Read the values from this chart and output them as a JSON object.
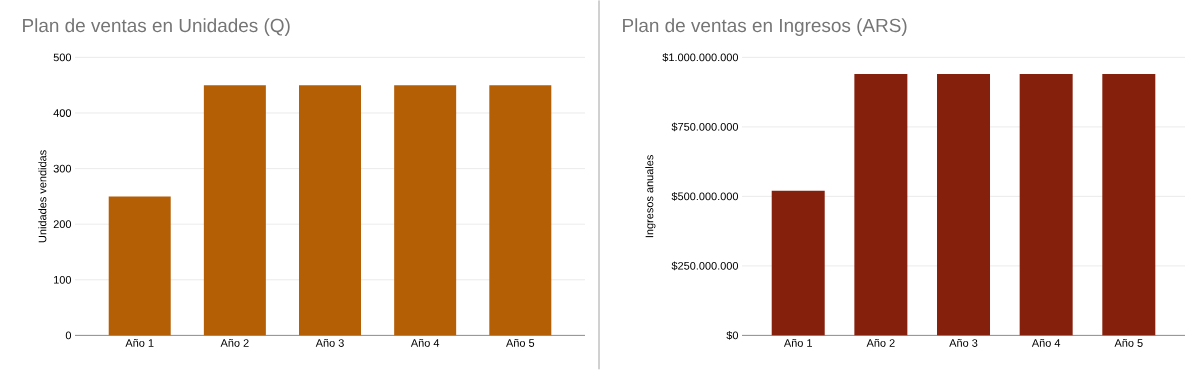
{
  "chart_data": [
    {
      "type": "bar",
      "title": "Plan de ventas en Unidades (Q)",
      "ylabel": "Unidades vendidas",
      "categories": [
        "Año 1",
        "Año 2",
        "Año 3",
        "Año 4",
        "Año 5"
      ],
      "values": [
        250,
        450,
        450,
        450,
        450
      ],
      "color": "#b45f06",
      "ylim": [
        0,
        500
      ],
      "yticks": [
        0,
        100,
        200,
        300,
        400,
        500
      ],
      "grid": "y"
    },
    {
      "type": "bar",
      "title": "Plan de ventas en Ingresos (ARS)",
      "ylabel": "Ingresos anuales",
      "categories": [
        "Año 1",
        "Año 2",
        "Año 3",
        "Año 4",
        "Año 5"
      ],
      "values": [
        520000000,
        940000000,
        940000000,
        940000000,
        940000000
      ],
      "color": "#85200c",
      "ylim": [
        0,
        1000000000
      ],
      "yticks": [
        {
          "value": 0,
          "label": "$0"
        },
        {
          "value": 250000000,
          "label": "$250.000.000"
        },
        {
          "value": 500000000,
          "label": "$500.000.000"
        },
        {
          "value": 750000000,
          "label": "$750.000.000"
        },
        {
          "value": 1000000000,
          "label": "$1.000.000.000"
        }
      ],
      "grid": "y"
    }
  ]
}
